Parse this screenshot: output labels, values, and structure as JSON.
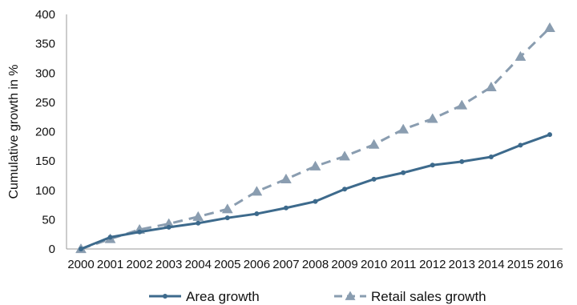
{
  "chart_data": {
    "type": "line",
    "title": "",
    "xlabel": "",
    "ylabel": "Cumulative growth in %",
    "ylim": [
      0,
      400
    ],
    "yticks": [
      0,
      50,
      100,
      150,
      200,
      250,
      300,
      350,
      400
    ],
    "grid": false,
    "legend": "bottom",
    "categories": [
      "2000",
      "2001",
      "2002",
      "2003",
      "2004",
      "2005",
      "2006",
      "2007",
      "2008",
      "2009",
      "2010",
      "2011",
      "2012",
      "2013",
      "2014",
      "2015",
      "2016"
    ],
    "series": [
      {
        "name": "Area growth",
        "style": "solid",
        "marker": "circle",
        "color": "#3d6a8c",
        "values": [
          0,
          20,
          29,
          37,
          44,
          53,
          60,
          70,
          81,
          102,
          119,
          130,
          143,
          149,
          157,
          177,
          195
        ]
      },
      {
        "name": "Retail sales growth",
        "style": "dashed",
        "marker": "triangle",
        "color": "#8a9db0",
        "values": [
          0,
          17,
          33,
          43,
          55,
          68,
          98,
          119,
          141,
          158,
          178,
          204,
          222,
          245,
          276,
          328,
          377
        ]
      }
    ]
  }
}
